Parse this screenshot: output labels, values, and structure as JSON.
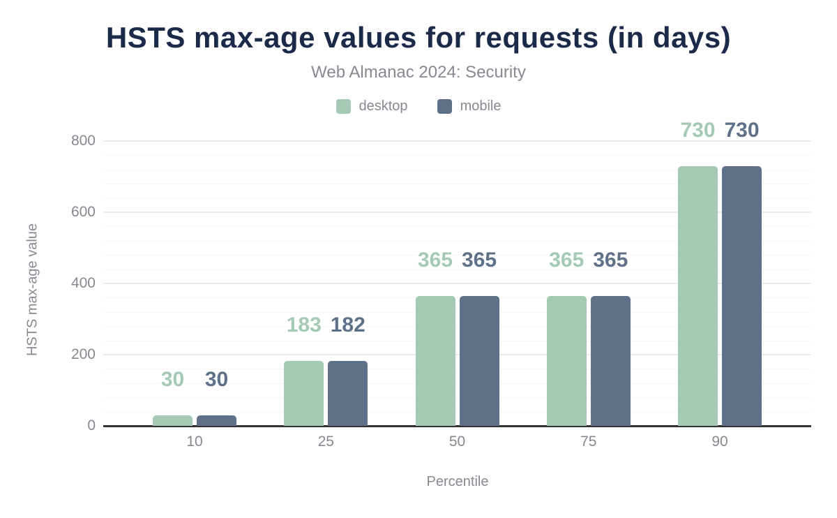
{
  "header": {
    "title": "HSTS max-age values for requests (in days)",
    "subtitle": "Web Almanac 2024: Security"
  },
  "chart_data": {
    "type": "bar",
    "title": "HSTS max-age values for requests (in days)",
    "subtitle": "Web Almanac 2024: Security",
    "xlabel": "Percentile",
    "ylabel": "HSTS max-age value",
    "categories": [
      "10",
      "25",
      "50",
      "75",
      "90"
    ],
    "series": [
      {
        "name": "desktop",
        "color": "#a4c9b4",
        "values": [
          30,
          183,
          365,
          365,
          730
        ]
      },
      {
        "name": "mobile",
        "color": "#5f7089",
        "values": [
          30,
          182,
          365,
          365,
          730
        ]
      }
    ],
    "ylim": [
      0,
      800
    ],
    "yticks": [
      0,
      200,
      400,
      600,
      800
    ],
    "grid": {
      "major_step": 200,
      "minor_step": 40,
      "on": true
    },
    "legend_position": "top",
    "data_labels": true
  },
  "colors": {
    "title": "#1c2a4a",
    "muted_text": "#868a90",
    "tick_text": "#85888e",
    "major_grid": "#ececec",
    "minor_grid": "#f6f6f6",
    "axis_line": "#333333",
    "background": "#ffffff"
  }
}
